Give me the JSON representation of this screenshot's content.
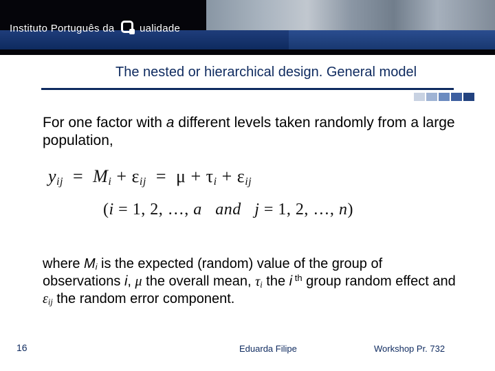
{
  "header": {
    "institute_pre": "Instituto Português da",
    "institute_post": "ualidade",
    "bar_gradient_top": "#1f3d7a",
    "bar_gradient_bottom": "#0e2a5f",
    "background": "#05050a"
  },
  "title": {
    "text": "The nested or hierarchical design. General model",
    "color": "#0e2a5f",
    "rule_color": "#0e2a5f",
    "fontsize": 20
  },
  "accent_colors": [
    "#c8d2e2",
    "#9fb3d4",
    "#6b8bc0",
    "#3d5fa0",
    "#22427f"
  ],
  "para1": {
    "pre": "For one factor with ",
    "a": "a",
    "post": " different levels taken randomly from a large population,",
    "fontsize": 21,
    "color": "#000000"
  },
  "equation": {
    "line1_html": "<span class='var'>y</span><sub>ij</sub> &nbsp;=&nbsp; <span class='var'>M</span><sub>i</sub> + <span class='gk'>ε</span><sub>ij</sub> &nbsp;=&nbsp; <span class='gk'>μ</span> + <span class='gk'>τ</span><sub>i</sub> + <span class='gk'>ε</span><sub>ij</sub>",
    "line2_html": "(<span class='var'>i</span> = 1, 2, …, <span class='var'>a</span> &nbsp;&nbsp;<span class='var'>and</span>&nbsp;&nbsp; <span class='var'>j</span> = 1, 2, …, <span class='var'>n</span>)",
    "fontsize_line1": 26,
    "fontsize_line2": 24,
    "font_family": "Georgia, 'Times New Roman', serif",
    "color": "#111111"
  },
  "para2": {
    "html": "where <span class='ital'>M<sub>i</sub></span> is the expected (random) value of the group of observations <span class='ital'>i</span>, <span class='gk'>μ</span> the overall mean, <span class='gk'>τ<sub>i</sub></span> the <span class='ital'>i</span><sup>&nbsp;th</sup> group random effect and <span class='gk'>ε<sub>ij</sub></span> the random error component.",
    "fontsize": 20,
    "color": "#000000"
  },
  "footer": {
    "slide_number": "16",
    "author": "Eduarda Filipe",
    "workshop": "Workshop Pr. 732",
    "color": "#0e2a5f"
  }
}
